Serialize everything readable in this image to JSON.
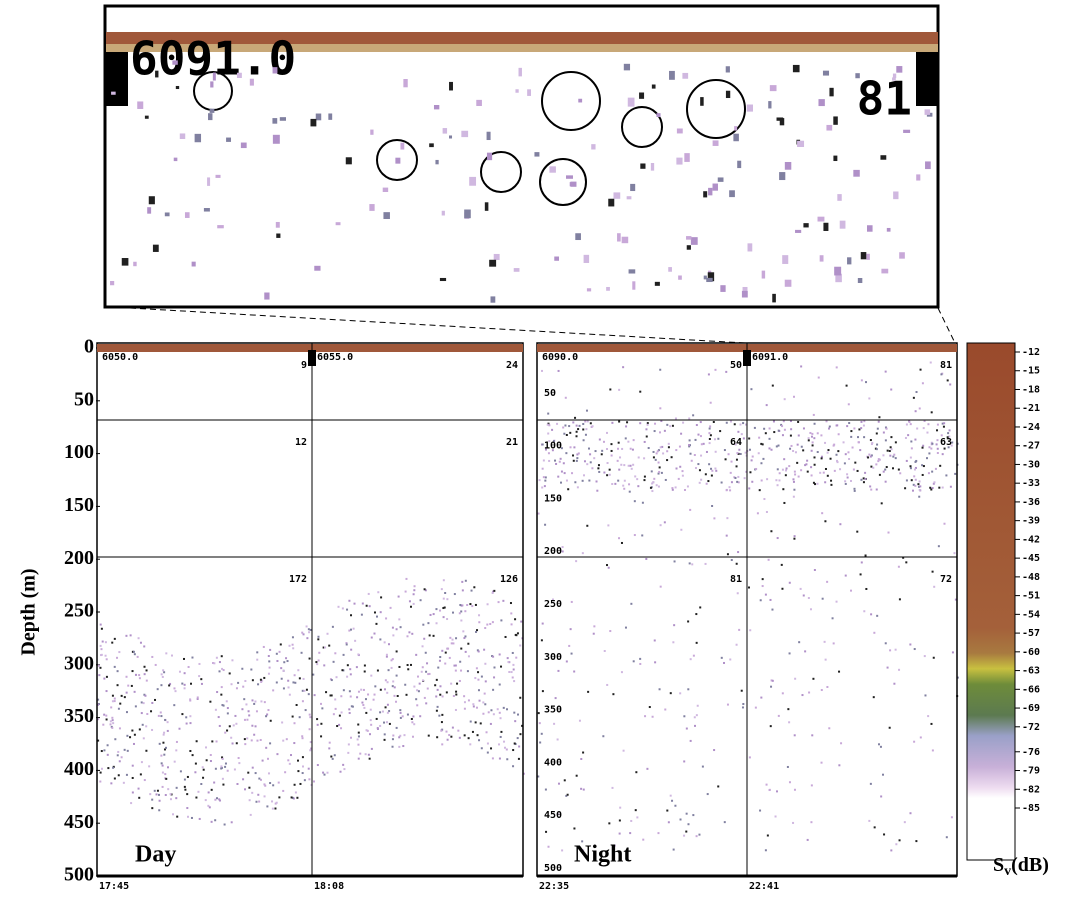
{
  "zoom": {
    "id": "6091.0",
    "count": "81"
  },
  "depth_axis": {
    "label": "Depth (m)",
    "ylim": [
      0,
      500
    ],
    "yticks": [
      0,
      50,
      100,
      150,
      200,
      250,
      300,
      350,
      400,
      450,
      500
    ]
  },
  "panels": [
    {
      "label": "Day",
      "echograms": [
        {
          "id": "6050.0",
          "time": "17:45",
          "counts": [
            "9",
            "12",
            "172"
          ]
        },
        {
          "id": "6055.0",
          "time": "18:08",
          "counts": [
            "24",
            "21",
            "126"
          ]
        }
      ]
    },
    {
      "label": "Night",
      "echograms": [
        {
          "id": "6090.0",
          "time": "22:35",
          "counts": [
            "50",
            "64",
            "81"
          ]
        },
        {
          "id": "6091.0",
          "time": "22:41",
          "counts": [
            "81",
            "63",
            "72"
          ]
        }
      ]
    }
  ],
  "night_depth_ticks": [
    50,
    100,
    150,
    200,
    250,
    300,
    350,
    400,
    450,
    500
  ],
  "colorbar": {
    "symbol": "S",
    "subscript": "v",
    "unit": "(dB)",
    "ticks": [
      -12,
      -15,
      -18,
      -21,
      -24,
      -27,
      -30,
      -33,
      -36,
      -39,
      -42,
      -45,
      -48,
      -51,
      -54,
      -57,
      -60,
      -63,
      -66,
      -69,
      -72,
      -76,
      -79,
      -82,
      -85
    ]
  }
}
